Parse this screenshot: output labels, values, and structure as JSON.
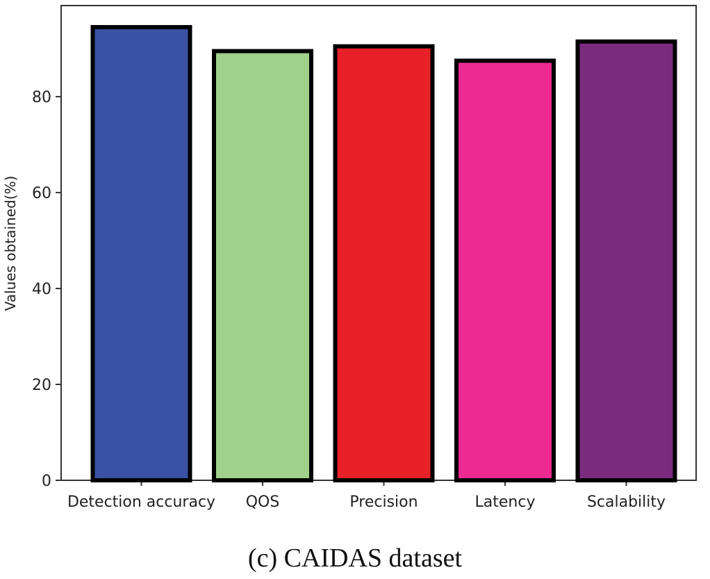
{
  "chart_data": {
    "type": "bar",
    "title": "",
    "xlabel": "",
    "ylabel": "Values obtained(%)",
    "categories": [
      "Detection accuracy",
      "QOS",
      "Precision",
      "Latency",
      "Scalability"
    ],
    "values": [
      94.5,
      89.5,
      90.5,
      87.5,
      91.5
    ],
    "colors": [
      "#3a52a3",
      "#a0d18a",
      "#e82128",
      "#ec2a92",
      "#7b2a7e"
    ],
    "bar_edge_color": "#000000",
    "yticks": [
      0,
      20,
      40,
      60,
      80
    ],
    "ylim": [
      0,
      99
    ],
    "grid": false
  },
  "caption": "(c)  CAIDAS dataset"
}
